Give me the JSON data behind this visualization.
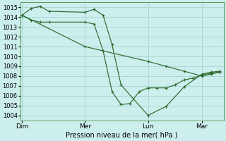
{
  "xlabel": "Pression niveau de la mer( hPa )",
  "background_color": "#cceeed",
  "grid_color": "#aad8d5",
  "line_color": "#2d6b2d",
  "marker_color": "#2d6b2d",
  "ylim": [
    1003.5,
    1015.5
  ],
  "yticks": [
    1004,
    1005,
    1006,
    1007,
    1008,
    1009,
    1010,
    1011,
    1012,
    1013,
    1014,
    1015
  ],
  "xlim": [
    -0.1,
    11.2
  ],
  "xtick_labels": [
    "Dim",
    "Mer",
    "Lun",
    "Mar"
  ],
  "xtick_positions": [
    0,
    3.5,
    7,
    10
  ],
  "vlines": [
    0,
    3.5,
    7,
    10
  ],
  "series": [
    {
      "x": [
        0,
        0.5,
        1.0,
        1.5,
        3.5,
        4.0,
        4.5,
        5.0,
        5.5,
        7.0,
        8.0,
        9.0,
        10.0,
        10.5,
        11.0
      ],
      "y": [
        1014.2,
        1014.9,
        1015.1,
        1014.6,
        1014.5,
        1014.8,
        1014.2,
        1011.2,
        1007.1,
        1004.0,
        1004.9,
        1006.9,
        1008.2,
        1008.4,
        1008.5
      ]
    },
    {
      "x": [
        0,
        0.5,
        1.0,
        1.5,
        3.5,
        4.0,
        4.5,
        5.0,
        5.5,
        6.0,
        6.5,
        7.0,
        7.5,
        8.0,
        8.5,
        9.0,
        9.5,
        10.0,
        10.5,
        11.0
      ],
      "y": [
        1014.2,
        1013.7,
        1013.5,
        1013.5,
        1013.5,
        1013.3,
        1010.6,
        1006.4,
        1005.1,
        1005.2,
        1006.4,
        1006.8,
        1006.8,
        1006.8,
        1007.1,
        1007.6,
        1007.8,
        1008.1,
        1008.3,
        1008.4
      ]
    },
    {
      "x": [
        0,
        3.5,
        7.0,
        8.0,
        9.0,
        10.0,
        10.5,
        11.0
      ],
      "y": [
        1014.2,
        1011.0,
        1009.5,
        1009.0,
        1008.5,
        1008.0,
        1008.2,
        1008.4
      ]
    }
  ]
}
